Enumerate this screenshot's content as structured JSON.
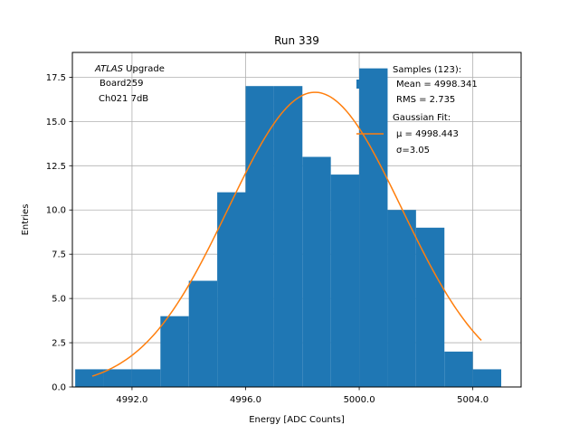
{
  "chart_data": {
    "type": "bar",
    "title": "Run 339",
    "xlabel": "Energy [ADC Counts]",
    "ylabel": "Entries",
    "xlim": [
      4989.9,
      5005.7
    ],
    "ylim": [
      0,
      18.9
    ],
    "grid": true,
    "x_ticks": [
      {
        "value": 4992.0,
        "label": "4992.0"
      },
      {
        "value": 4996.0,
        "label": "4996.0"
      },
      {
        "value": 5000.0,
        "label": "5000.0"
      },
      {
        "value": 5004.0,
        "label": "5004.0"
      }
    ],
    "y_ticks": [
      {
        "value": 0.0,
        "label": "0.0"
      },
      {
        "value": 2.5,
        "label": "2.5"
      },
      {
        "value": 5.0,
        "label": "5.0"
      },
      {
        "value": 7.5,
        "label": "7.5"
      },
      {
        "value": 10.0,
        "label": "10.0"
      },
      {
        "value": 12.5,
        "label": "12.5"
      },
      {
        "value": 15.0,
        "label": "15.0"
      },
      {
        "value": 17.5,
        "label": "17.5"
      }
    ],
    "histogram": {
      "color": "#1f77b4",
      "bins": [
        {
          "x0": 4990.0,
          "x1": 4991.0,
          "count": 1
        },
        {
          "x0": 4991.0,
          "x1": 4992.0,
          "count": 1
        },
        {
          "x0": 4992.0,
          "x1": 4993.0,
          "count": 1
        },
        {
          "x0": 4993.0,
          "x1": 4994.0,
          "count": 4
        },
        {
          "x0": 4994.0,
          "x1": 4995.0,
          "count": 6
        },
        {
          "x0": 4995.0,
          "x1": 4996.0,
          "count": 11
        },
        {
          "x0": 4996.0,
          "x1": 4997.0,
          "count": 17
        },
        {
          "x0": 4997.0,
          "x1": 4998.0,
          "count": 17
        },
        {
          "x0": 4998.0,
          "x1": 4999.0,
          "count": 13
        },
        {
          "x0": 4999.0,
          "x1": 5000.0,
          "count": 12
        },
        {
          "x0": 5000.0,
          "x1": 5001.0,
          "count": 18
        },
        {
          "x0": 5001.0,
          "x1": 5002.0,
          "count": 10
        },
        {
          "x0": 5002.0,
          "x1": 5003.0,
          "count": 9
        },
        {
          "x0": 5003.0,
          "x1": 5004.0,
          "count": 2
        },
        {
          "x0": 5004.0,
          "x1": 5005.0,
          "count": 1
        }
      ]
    },
    "fit": {
      "color": "#ff7f0e",
      "mu": 4998.443,
      "sigma": 3.05,
      "amplitude": 16.65,
      "x_range": [
        4990.6,
        5004.3
      ]
    },
    "annotation": {
      "italic": "ATLAS",
      "rest": " Upgrade",
      "line2": "Board259",
      "line3": "Ch021 7dB"
    },
    "legend": {
      "position": "top-right",
      "samples_line1": "Samples (123):",
      "samples_line2": "Mean = 4998.341",
      "samples_line3": "RMS = 2.735",
      "fit_line1": "Gaussian Fit:",
      "fit_line2": "μ = 4998.443",
      "fit_line3": "σ=3.05"
    }
  }
}
